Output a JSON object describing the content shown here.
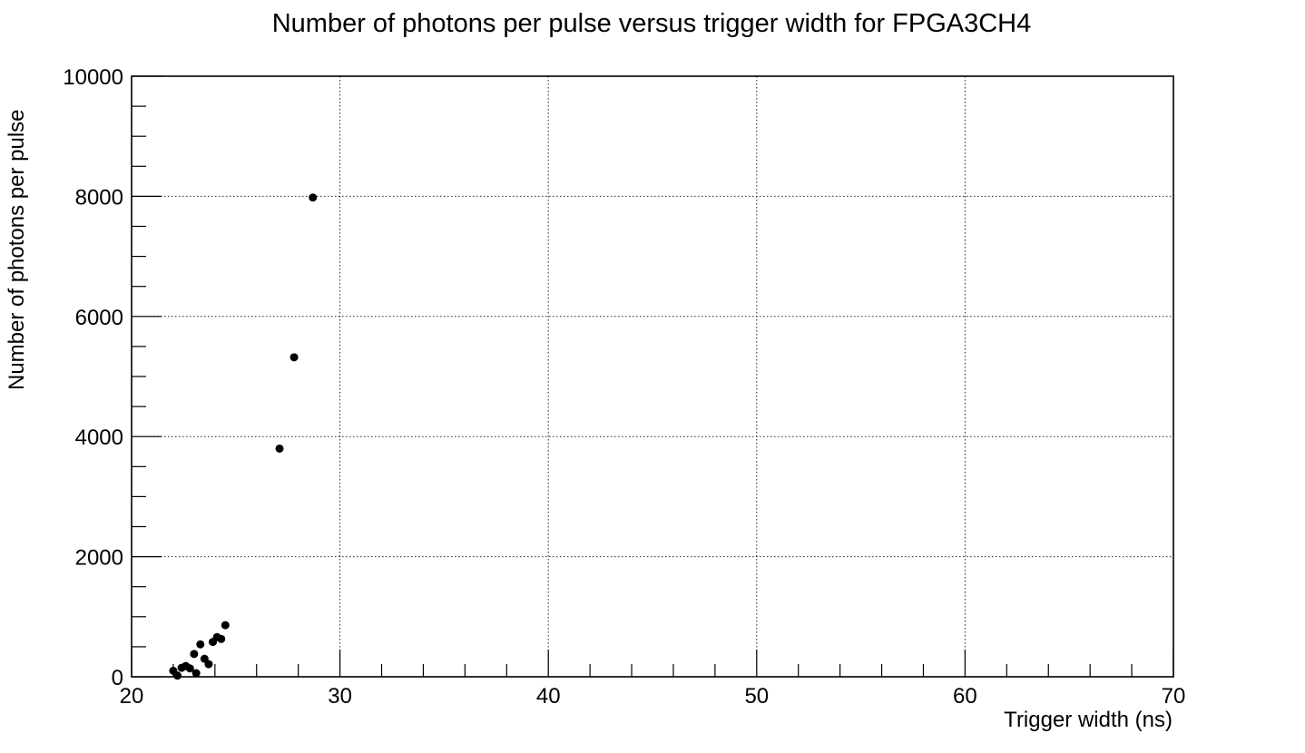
{
  "chart_data": {
    "type": "scatter",
    "title": "Number of photons per pulse versus trigger width for FPGA3CH4",
    "xlabel": "Trigger width (ns)",
    "ylabel": "Number of photons per pulse",
    "xlim": [
      20,
      70
    ],
    "ylim": [
      0,
      10000
    ],
    "x_ticks": [
      20,
      30,
      40,
      50,
      60,
      70
    ],
    "y_ticks": [
      0,
      2000,
      4000,
      6000,
      8000,
      10000
    ],
    "x_minor_step": 2,
    "y_minor_step": 500,
    "grid": true,
    "marker_color": "#000000",
    "points": [
      {
        "x": 22.0,
        "y": 100
      },
      {
        "x": 22.2,
        "y": 20
      },
      {
        "x": 22.4,
        "y": 150
      },
      {
        "x": 22.6,
        "y": 180
      },
      {
        "x": 22.8,
        "y": 140
      },
      {
        "x": 23.0,
        "y": 380
      },
      {
        "x": 23.1,
        "y": 60
      },
      {
        "x": 23.3,
        "y": 540
      },
      {
        "x": 23.5,
        "y": 300
      },
      {
        "x": 23.7,
        "y": 210
      },
      {
        "x": 23.9,
        "y": 580
      },
      {
        "x": 24.1,
        "y": 660
      },
      {
        "x": 24.3,
        "y": 630
      },
      {
        "x": 24.5,
        "y": 860
      },
      {
        "x": 27.1,
        "y": 3800
      },
      {
        "x": 27.8,
        "y": 5320
      },
      {
        "x": 28.7,
        "y": 7980
      }
    ]
  }
}
